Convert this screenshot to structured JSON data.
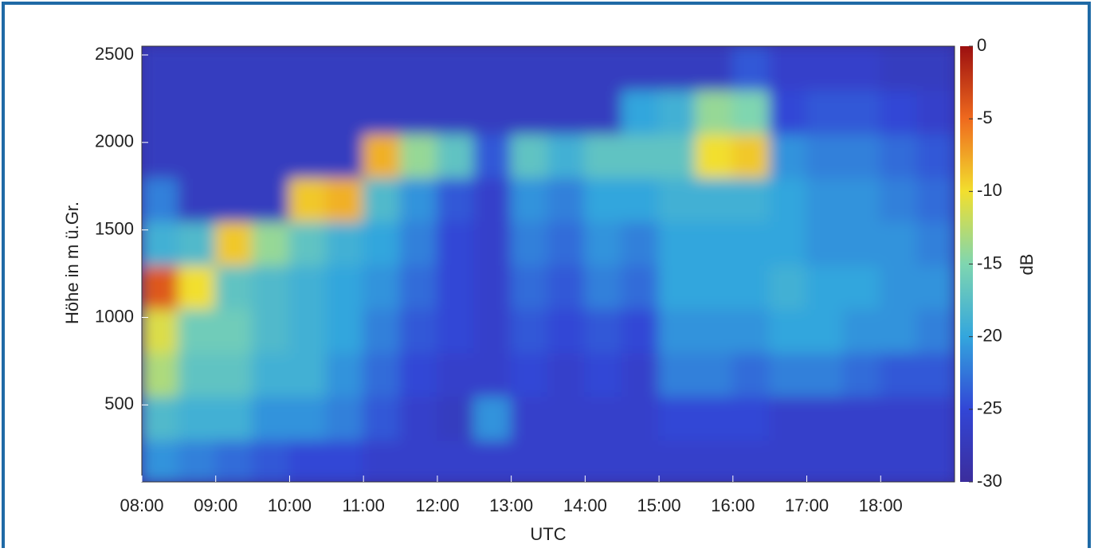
{
  "chart_data": {
    "type": "heatmap",
    "xlabel": "UTC",
    "ylabel": "Höhe in m ü.Gr.",
    "colorbar_label": "dB",
    "xlim": [
      8,
      19
    ],
    "ylim": [
      60,
      2550
    ],
    "xticks": [
      {
        "value": 8,
        "label": "08:00"
      },
      {
        "value": 9,
        "label": "09:00"
      },
      {
        "value": 10,
        "label": "10:00"
      },
      {
        "value": 11,
        "label": "11:00"
      },
      {
        "value": 12,
        "label": "12:00"
      },
      {
        "value": 13,
        "label": "13:00"
      },
      {
        "value": 14,
        "label": "14:00"
      },
      {
        "value": 15,
        "label": "15:00"
      },
      {
        "value": 16,
        "label": "16:00"
      },
      {
        "value": 17,
        "label": "17:00"
      },
      {
        "value": 18,
        "label": "18:00"
      }
    ],
    "yticks": [
      500,
      1000,
      1500,
      2000,
      2500
    ],
    "clim": [
      -30,
      0
    ],
    "cticks": [
      0,
      -5,
      -10,
      -15,
      -20,
      -25,
      -30
    ],
    "colormap": [
      "#3b2d9c",
      "#3246d6",
      "#33a6dd",
      "#7fd6b0",
      "#f2df2e",
      "#ef6a1e",
      "#9c0f10"
    ],
    "xbins": [
      8,
      8.5,
      9,
      9.5,
      10,
      10.5,
      11,
      11.5,
      12,
      12.5,
      13,
      13.5,
      14,
      14.5,
      15,
      15.5,
      16,
      16.5,
      17,
      17.5,
      18,
      18.5,
      19
    ],
    "ybins": [
      60,
      300,
      550,
      800,
      1050,
      1300,
      1550,
      1800,
      2050,
      2300,
      2550
    ],
    "z": [
      [
        -21,
        -18,
        -13,
        -11,
        -4,
        -19,
        -22,
        -27,
        -27,
        -27
      ],
      [
        -22,
        -19,
        -17,
        -16,
        -10,
        -18,
        -27,
        -27,
        -27,
        -27
      ],
      [
        -23,
        -19,
        -17,
        -16,
        -17,
        -9,
        -27,
        -27,
        -27,
        -27
      ],
      [
        -24,
        -21,
        -19,
        -18,
        -18,
        -14,
        -27,
        -27,
        -27,
        -27
      ],
      [
        -25,
        -21,
        -19,
        -19,
        -19,
        -17,
        -9,
        -27,
        -27,
        -27
      ],
      [
        -25,
        -22,
        -21,
        -20,
        -20,
        -19,
        -8,
        -27,
        -27,
        -27
      ],
      [
        -26,
        -24,
        -23,
        -22,
        -21,
        -20,
        -18,
        -8,
        -27,
        -27
      ],
      [
        -26,
        -26,
        -25,
        -24,
        -23,
        -22,
        -21,
        -14,
        -27,
        -27
      ],
      [
        -26,
        -27,
        -26,
        -25,
        -25,
        -25,
        -24,
        -17,
        -27,
        -27
      ],
      [
        -26,
        -21,
        -26,
        -26,
        -26,
        -26,
        -26,
        -24,
        -27,
        -27
      ],
      [
        -26,
        -26,
        -25,
        -24,
        -23,
        -22,
        -21,
        -17,
        -27,
        -27
      ],
      [
        -26,
        -26,
        -26,
        -25,
        -24,
        -23,
        -22,
        -19,
        -27,
        -27
      ],
      [
        -26,
        -26,
        -25,
        -24,
        -22,
        -21,
        -20,
        -17,
        -27,
        -27
      ],
      [
        -26,
        -26,
        -26,
        -25,
        -23,
        -22,
        -20,
        -17,
        -20,
        -27
      ],
      [
        -26,
        -25,
        -22,
        -21,
        -20,
        -20,
        -19,
        -17,
        -19,
        -27
      ],
      [
        -26,
        -25,
        -22,
        -21,
        -20,
        -20,
        -19,
        -10,
        -14,
        -27
      ],
      [
        -26,
        -25,
        -23,
        -21,
        -20,
        -20,
        -19,
        -9,
        -15,
        -24
      ],
      [
        -26,
        -26,
        -22,
        -20,
        -19,
        -20,
        -20,
        -21,
        -25,
        -26
      ],
      [
        -26,
        -26,
        -22,
        -20,
        -20,
        -21,
        -21,
        -22,
        -24,
        -26
      ],
      [
        -26,
        -26,
        -23,
        -21,
        -20,
        -21,
        -21,
        -22,
        -24,
        -26
      ],
      [
        -26,
        -26,
        -24,
        -21,
        -21,
        -21,
        -22,
        -23,
        -25,
        -27
      ],
      [
        -26,
        -26,
        -24,
        -22,
        -21,
        -22,
        -23,
        -24,
        -26,
        -27
      ]
    ]
  }
}
